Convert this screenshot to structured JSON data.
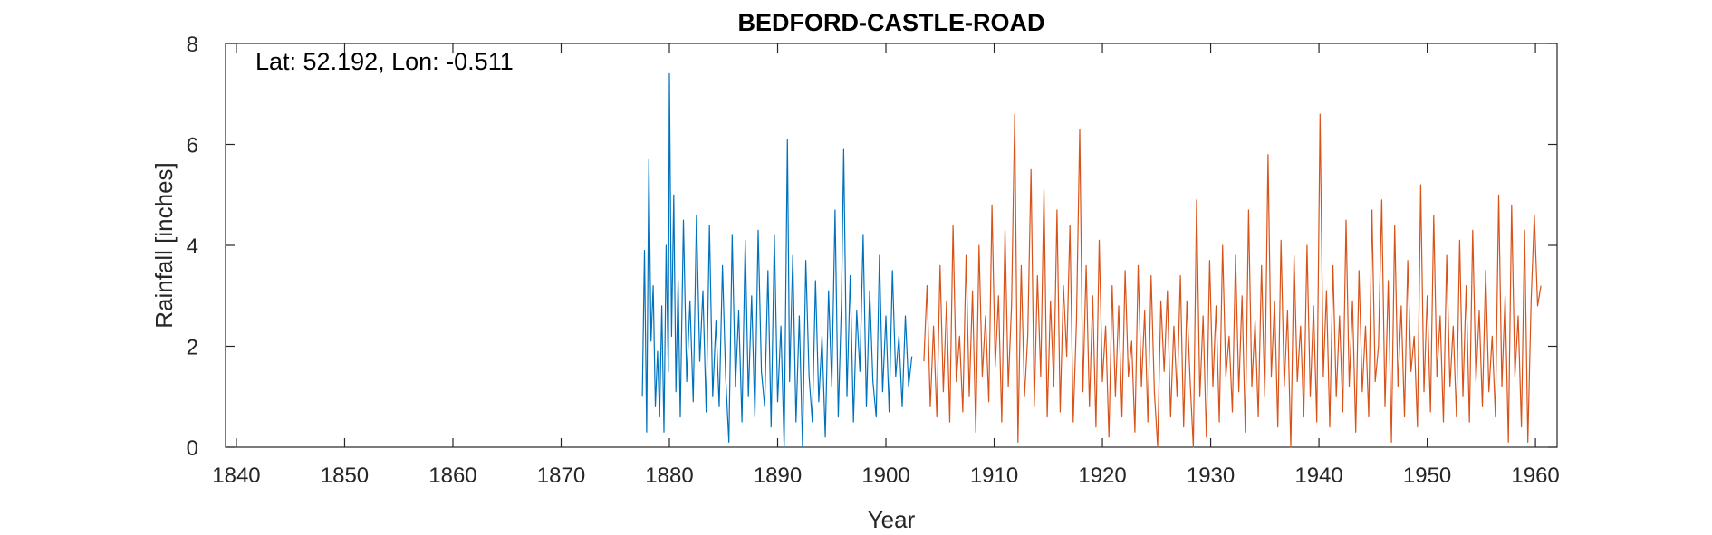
{
  "chart_data": {
    "type": "line",
    "title": "BEDFORD-CASTLE-ROAD",
    "annotation": "Lat: 52.192, Lon: -0.511",
    "xlabel": "Year",
    "ylabel": "Rainfall [inches]",
    "xlim": [
      1839,
      1962
    ],
    "ylim": [
      0,
      8
    ],
    "xticks": [
      1840,
      1850,
      1860,
      1870,
      1880,
      1890,
      1900,
      1910,
      1920,
      1930,
      1940,
      1950,
      1960
    ],
    "yticks": [
      0,
      2,
      4,
      6,
      8
    ],
    "grid": false,
    "series": [
      {
        "color": "#0072BD",
        "x": [
          1877.5,
          1877.7,
          1877.9,
          1878.1,
          1878.3,
          1878.5,
          1878.7,
          1878.9,
          1879.1,
          1879.3,
          1879.5,
          1879.7,
          1879.9,
          1880.0,
          1880.2,
          1880.4,
          1880.6,
          1880.8,
          1881.0,
          1881.3,
          1881.6,
          1881.9,
          1882.2,
          1882.5,
          1882.8,
          1883.1,
          1883.4,
          1883.7,
          1884.0,
          1884.3,
          1884.6,
          1884.9,
          1885.2,
          1885.5,
          1885.8,
          1886.1,
          1886.4,
          1886.7,
          1887.0,
          1887.3,
          1887.6,
          1887.9,
          1888.2,
          1888.5,
          1888.8,
          1889.1,
          1889.4,
          1889.7,
          1890.0,
          1890.3,
          1890.6,
          1890.9,
          1891.1,
          1891.4,
          1891.7,
          1892.0,
          1892.3,
          1892.6,
          1892.9,
          1893.2,
          1893.5,
          1893.8,
          1894.1,
          1894.4,
          1894.7,
          1895.0,
          1895.3,
          1895.6,
          1895.9,
          1896.1,
          1896.4,
          1896.7,
          1897.0,
          1897.3,
          1897.6,
          1897.9,
          1898.2,
          1898.5,
          1898.8,
          1899.1,
          1899.4,
          1899.7,
          1900.0,
          1900.3,
          1900.6,
          1900.9,
          1901.2,
          1901.5,
          1901.8,
          1902.1,
          1902.4
        ],
        "y": [
          1.0,
          3.9,
          0.3,
          5.7,
          2.1,
          3.2,
          0.8,
          1.9,
          0.6,
          2.8,
          0.3,
          4.0,
          1.5,
          7.4,
          2.2,
          5.0,
          1.1,
          3.3,
          0.6,
          4.5,
          1.3,
          2.9,
          0.9,
          4.6,
          1.7,
          3.1,
          0.7,
          4.4,
          1.0,
          2.5,
          0.8,
          3.6,
          1.4,
          0.1,
          4.2,
          1.2,
          2.7,
          0.5,
          4.1,
          1.0,
          3.0,
          0.6,
          4.3,
          1.5,
          0.8,
          3.5,
          0.4,
          4.2,
          0.9,
          2.4,
          0.0,
          6.1,
          1.3,
          3.8,
          0.5,
          2.6,
          0.0,
          3.7,
          1.4,
          0.5,
          3.3,
          0.9,
          2.2,
          0.2,
          3.1,
          1.2,
          4.7,
          0.6,
          2.9,
          5.9,
          1.0,
          3.4,
          0.5,
          2.7,
          1.5,
          4.2,
          0.8,
          3.1,
          1.3,
          0.6,
          3.8,
          1.1,
          2.6,
          0.7,
          3.5,
          1.4,
          2.2,
          0.8,
          2.6,
          1.2,
          1.8
        ]
      },
      {
        "color": "#D95319",
        "x": [
          1903.5,
          1903.8,
          1904.1,
          1904.4,
          1904.7,
          1905.0,
          1905.3,
          1905.6,
          1905.9,
          1906.2,
          1906.5,
          1906.8,
          1907.1,
          1907.4,
          1907.7,
          1908.0,
          1908.3,
          1908.6,
          1908.9,
          1909.2,
          1909.5,
          1909.8,
          1910.1,
          1910.4,
          1910.7,
          1911.0,
          1911.3,
          1911.6,
          1911.9,
          1912.2,
          1912.5,
          1912.8,
          1913.1,
          1913.4,
          1913.7,
          1914.0,
          1914.3,
          1914.6,
          1914.9,
          1915.2,
          1915.5,
          1915.8,
          1916.1,
          1916.4,
          1916.7,
          1917.0,
          1917.3,
          1917.6,
          1917.9,
          1918.2,
          1918.5,
          1918.8,
          1919.1,
          1919.4,
          1919.7,
          1920.0,
          1920.3,
          1920.6,
          1920.9,
          1921.2,
          1921.5,
          1921.8,
          1922.1,
          1922.4,
          1922.7,
          1923.0,
          1923.3,
          1923.6,
          1923.9,
          1924.2,
          1924.5,
          1924.8,
          1925.1,
          1925.4,
          1925.7,
          1926.0,
          1926.3,
          1926.6,
          1926.9,
          1927.2,
          1927.5,
          1927.8,
          1928.1,
          1928.4,
          1928.7,
          1929.0,
          1929.3,
          1929.6,
          1929.9,
          1930.2,
          1930.5,
          1930.8,
          1931.1,
          1931.4,
          1931.7,
          1932.0,
          1932.3,
          1932.6,
          1932.9,
          1933.2,
          1933.5,
          1933.8,
          1934.1,
          1934.4,
          1934.7,
          1935.0,
          1935.3,
          1935.6,
          1935.9,
          1936.2,
          1936.5,
          1936.8,
          1937.1,
          1937.4,
          1937.7,
          1938.0,
          1938.3,
          1938.6,
          1938.9,
          1939.2,
          1939.5,
          1939.8,
          1940.1,
          1940.4,
          1940.7,
          1941.0,
          1941.3,
          1941.6,
          1941.9,
          1942.2,
          1942.5,
          1942.8,
          1943.1,
          1943.4,
          1943.7,
          1944.0,
          1944.3,
          1944.6,
          1944.9,
          1945.2,
          1945.5,
          1945.8,
          1946.1,
          1946.4,
          1946.7,
          1947.0,
          1947.3,
          1947.6,
          1947.9,
          1948.2,
          1948.5,
          1948.8,
          1949.1,
          1949.4,
          1949.7,
          1950.0,
          1950.3,
          1950.6,
          1950.9,
          1951.2,
          1951.5,
          1951.8,
          1952.1,
          1952.4,
          1952.7,
          1953.0,
          1953.3,
          1953.6,
          1953.9,
          1954.2,
          1954.5,
          1954.8,
          1955.1,
          1955.4,
          1955.7,
          1956.0,
          1956.3,
          1956.6,
          1956.9,
          1957.2,
          1957.5,
          1957.8,
          1958.1,
          1958.4,
          1958.7,
          1959.0,
          1959.3,
          1959.6,
          1959.9,
          1960.2,
          1960.5
        ],
        "y": [
          1.7,
          3.2,
          0.8,
          2.4,
          0.6,
          3.6,
          1.1,
          2.9,
          0.5,
          4.4,
          1.3,
          2.2,
          0.7,
          3.8,
          1.0,
          3.1,
          0.3,
          4.0,
          1.4,
          2.6,
          0.9,
          4.8,
          1.6,
          3.0,
          0.5,
          4.3,
          1.2,
          2.8,
          6.6,
          0.1,
          3.6,
          1.0,
          2.2,
          5.5,
          0.8,
          3.4,
          1.4,
          5.1,
          0.6,
          2.9,
          1.2,
          4.7,
          0.7,
          3.2,
          1.8,
          4.4,
          0.5,
          2.5,
          6.3,
          1.1,
          3.6,
          0.8,
          3.0,
          0.4,
          4.1,
          1.3,
          2.4,
          0.2,
          3.2,
          1.0,
          2.8,
          0.6,
          3.5,
          1.4,
          2.1,
          0.3,
          3.6,
          1.2,
          2.7,
          0.5,
          3.4,
          1.1,
          0.0,
          2.9,
          1.5,
          3.1,
          0.6,
          2.4,
          1.0,
          3.4,
          0.4,
          2.9,
          1.3,
          0.0,
          4.9,
          1.0,
          2.6,
          0.2,
          3.7,
          1.2,
          2.8,
          0.5,
          4.0,
          1.4,
          2.2,
          0.7,
          3.8,
          1.1,
          3.0,
          0.3,
          4.7,
          1.2,
          2.5,
          0.6,
          3.6,
          1.0,
          5.8,
          1.4,
          2.9,
          0.4,
          4.1,
          1.2,
          2.7,
          0.0,
          3.8,
          1.3,
          2.4,
          0.6,
          4.0,
          1.0,
          2.8,
          0.5,
          6.6,
          1.4,
          3.1,
          0.4,
          3.6,
          1.0,
          2.6,
          0.7,
          4.5,
          1.2,
          2.9,
          0.3,
          3.5,
          1.1,
          2.4,
          0.6,
          4.7,
          1.3,
          2.0,
          4.9,
          0.8,
          3.3,
          0.1,
          4.4,
          1.2,
          2.8,
          0.6,
          3.7,
          1.5,
          2.2,
          0.4,
          5.2,
          1.1,
          3.0,
          0.7,
          4.6,
          1.4,
          2.6,
          0.5,
          3.8,
          1.2,
          2.4,
          0.6,
          4.1,
          1.0,
          3.2,
          0.5,
          4.3,
          1.3,
          2.7,
          0.8,
          3.5,
          1.1,
          2.2,
          0.6,
          5.0,
          1.2,
          3.0,
          0.1,
          4.8,
          1.4,
          2.6,
          0.4,
          4.3,
          0.1,
          2.9,
          4.6,
          2.8,
          3.2
        ]
      }
    ]
  }
}
